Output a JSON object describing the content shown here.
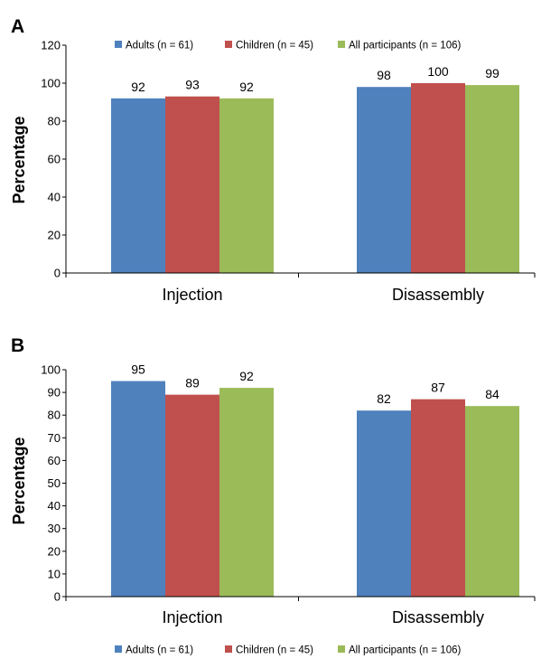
{
  "chart_data": [
    {
      "panel_label": "A",
      "type": "bar",
      "categories": [
        "Injection",
        "Disassembly"
      ],
      "series": [
        {
          "name": "Adults (n = 61)",
          "values": [
            92,
            98
          ],
          "color": "#4f81bd"
        },
        {
          "name": "Children (n = 45)",
          "values": [
            93,
            100
          ],
          "color": "#c0504d"
        },
        {
          "name": "All participants (n = 106)",
          "values": [
            92,
            99
          ],
          "color": "#9bbb59"
        }
      ],
      "ylabel": "Percentage",
      "ylim": [
        0,
        120
      ],
      "yticks": [
        0,
        20,
        40,
        60,
        80,
        100,
        120
      ],
      "grid": false,
      "legend_position": "top"
    },
    {
      "panel_label": "B",
      "type": "bar",
      "categories": [
        "Injection",
        "Disassembly"
      ],
      "series": [
        {
          "name": "Adults (n = 61)",
          "values": [
            95,
            82
          ],
          "color": "#4f81bd"
        },
        {
          "name": "Children (n = 45)",
          "values": [
            89,
            87
          ],
          "color": "#c0504d"
        },
        {
          "name": "All participants (n = 106)",
          "values": [
            92,
            84
          ],
          "color": "#9bbb59"
        }
      ],
      "ylabel": "Percentage",
      "ylim": [
        0,
        100
      ],
      "yticks": [
        0,
        10,
        20,
        30,
        40,
        50,
        60,
        70,
        80,
        90,
        100
      ],
      "grid": false,
      "legend_position": "bottom"
    }
  ]
}
